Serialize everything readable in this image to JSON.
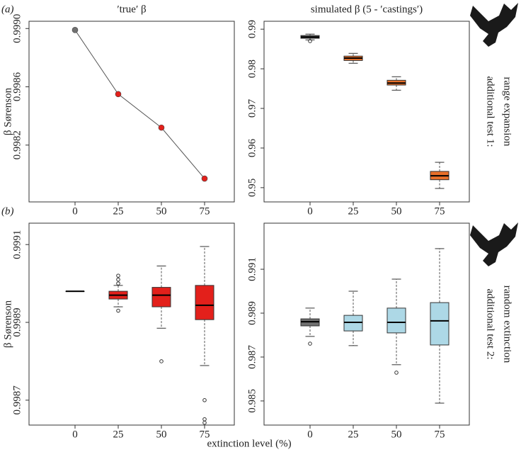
{
  "figure": {
    "xlabel": "extinction level (%)"
  },
  "chart_data": [
    {
      "type": "line",
      "panel_label": "(a)",
      "title": "′true′ β",
      "ylabel": "β Sørenson",
      "categories": [
        "0",
        "25",
        "50",
        "75"
      ],
      "values": [
        0.99899,
        0.99855,
        0.99832,
        0.99797
      ],
      "colors": [
        "#707070",
        "#e3201b",
        "#e3201b",
        "#e3201b"
      ],
      "line_color": "#555555",
      "ylim": [
        0.99781,
        0.99905
      ],
      "yticks": [
        0.9982,
        0.9986,
        {
          "value": 0.999,
          "label": "0.9990"
        }
      ]
    },
    {
      "type": "box",
      "title": "simulated β (5 - ′castings′)",
      "side_label": [
        "additional test 1:",
        "range expansion"
      ],
      "categories": [
        "0",
        "25",
        "50",
        "75"
      ],
      "colors": [
        "#505050",
        "#e8702a",
        "#e8702a",
        "#e8702a"
      ],
      "boxes": [
        {
          "whislo": 0.9873,
          "q1": 0.9877,
          "med": 0.988,
          "q3": 0.9884,
          "whishi": 0.98875,
          "fliers": [
            0.987
          ]
        },
        {
          "whislo": 0.9814,
          "q1": 0.9821,
          "med": 0.9827,
          "q3": 0.9832,
          "whishi": 0.9839,
          "fliers": []
        },
        {
          "whislo": 0.9746,
          "q1": 0.9759,
          "med": 0.9764,
          "q3": 0.9771,
          "whishi": 0.978,
          "fliers": []
        },
        {
          "whislo": 0.9498,
          "q1": 0.952,
          "med": 0.953,
          "q3": 0.9541,
          "whishi": 0.9564,
          "fliers": []
        }
      ],
      "ylim": [
        0.9464,
        0.992
      ],
      "yticks": [
        0.95,
        0.96,
        0.97,
        0.98,
        0.99
      ]
    },
    {
      "type": "box",
      "panel_label": "(b)",
      "ylabel": "β Sørenson",
      "categories": [
        "0",
        "25",
        "50",
        "75"
      ],
      "colors": [
        "#505050",
        "#e3201b",
        "#e3201b",
        "#e3201b"
      ],
      "boxes": [
        {
          "whislo": 0.99898,
          "q1": 0.99898,
          "med": 0.99898,
          "q3": 0.99898,
          "whishi": 0.99898,
          "fliers": []
        },
        {
          "whislo": 0.99894,
          "q1": 0.99896,
          "med": 0.99897,
          "q3": 0.99898,
          "whishi": 0.998995,
          "fliers": [
            0.99902,
            0.99901,
            0.999,
            0.99893
          ]
        },
        {
          "whislo": 0.998885,
          "q1": 0.99894,
          "med": 0.99897,
          "q3": 0.99899,
          "whishi": 0.999045,
          "fliers": [
            0.9988
          ]
        },
        {
          "whislo": 0.998789,
          "q1": 0.998907,
          "med": 0.998944,
          "q3": 0.998995,
          "whishi": 0.999095,
          "fliers": [
            0.9987,
            0.998651,
            0.998642
          ]
        }
      ],
      "ylim": [
        0.998636,
        0.999155
      ],
      "yticks": [
        0.9987,
        0.9989,
        0.9991
      ]
    },
    {
      "type": "box",
      "side_label": [
        "additional test 2:",
        "random extinction"
      ],
      "categories": [
        "0",
        "25",
        "50",
        "75"
      ],
      "colors": [
        "#707070",
        "#add8e6",
        "#add8e6",
        "#add8e6"
      ],
      "boxes": [
        {
          "whislo": 0.98794,
          "q1": 0.98842,
          "med": 0.98861,
          "q3": 0.98874,
          "whishi": 0.98923,
          "fliers": [
            0.98761
          ]
        },
        {
          "whislo": 0.98752,
          "q1": 0.98819,
          "med": 0.98858,
          "q3": 0.9889,
          "whishi": 0.99,
          "fliers": []
        },
        {
          "whislo": 0.98665,
          "q1": 0.9881,
          "med": 0.98858,
          "q3": 0.98923,
          "whishi": 0.99055,
          "fliers": [
            0.98629
          ]
        },
        {
          "whislo": 0.9849,
          "q1": 0.98755,
          "med": 0.98865,
          "q3": 0.98948,
          "whishi": 0.99194,
          "fliers": []
        }
      ],
      "ylim": [
        0.9839,
        0.9931
      ],
      "yticks": [
        0.985,
        0.987,
        0.989,
        0.991
      ]
    }
  ]
}
